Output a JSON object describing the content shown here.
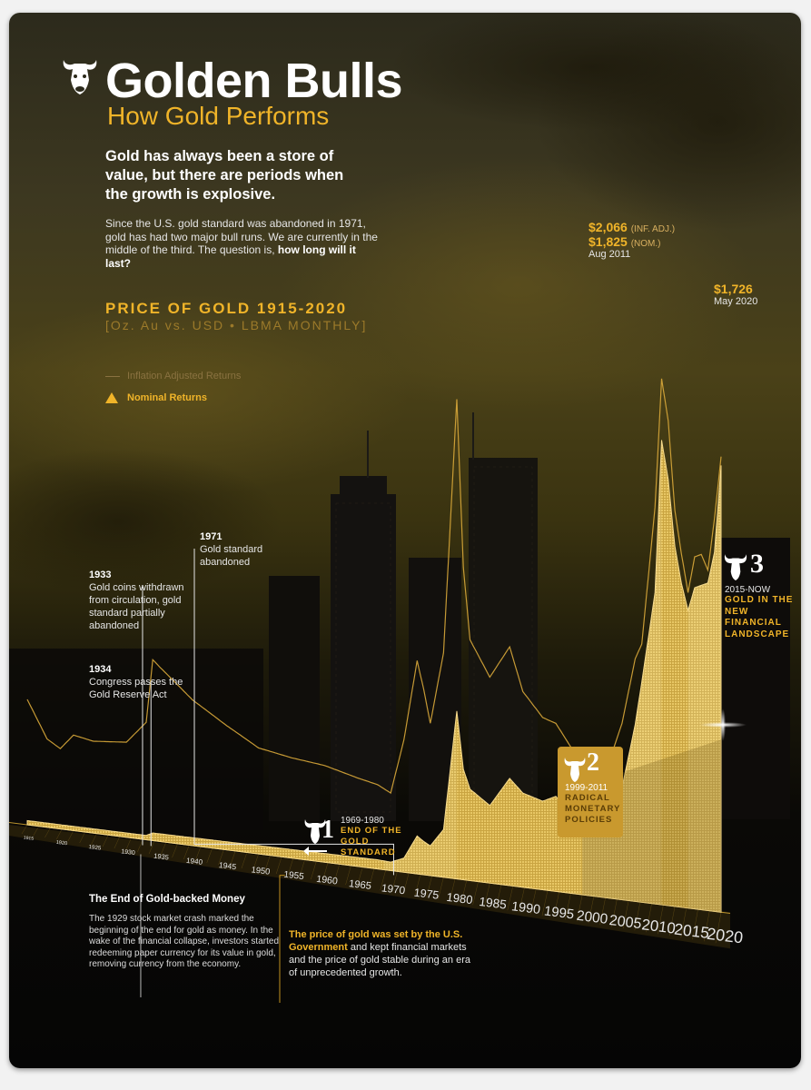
{
  "header": {
    "title": "Golden Bulls",
    "subtitle": "How Gold Performs",
    "lead": "Gold has always been a store of value, but there are periods when the growth is explosive.",
    "body_start": "Since the U.S. gold standard was abandoned in 1971, gold has had two major bull runs. We are currently in the middle of the third. The question is, ",
    "body_bold": "how long will it last?"
  },
  "chart_data": {
    "type": "area",
    "title": "PRICE OF GOLD 1915-2020",
    "subtitle": "[Oz. Au vs. USD • LBMA MONTHLY]",
    "legend": [
      {
        "name": "Inflation Adjusted Returns"
      },
      {
        "name": "Nominal Returns"
      }
    ],
    "x_ticks": [
      "1915",
      "1920",
      "1925",
      "1930",
      "1935",
      "1940",
      "1945",
      "1950",
      "1955",
      "1960",
      "1965",
      "1970",
      "1975",
      "1980",
      "1985",
      "1990",
      "1995",
      "2000",
      "2005",
      "2010",
      "2015",
      "2020"
    ],
    "xlim": [
      1915,
      2020
    ],
    "ylim": [
      0,
      2100
    ],
    "series": [
      {
        "name": "Inflation Adjusted Returns",
        "x": [
          1915,
          1918,
          1920,
          1922,
          1925,
          1930,
          1933,
          1934,
          1935,
          1940,
          1945,
          1950,
          1955,
          1960,
          1965,
          1968,
          1970,
          1972,
          1974,
          1975,
          1976,
          1978,
          1980,
          1981,
          1982,
          1985,
          1988,
          1990,
          1993,
          1995,
          1998,
          2000,
          2001,
          2003,
          2005,
          2007,
          2008,
          2010,
          2011,
          2012,
          2013,
          2014,
          2015,
          2016,
          2017,
          2018,
          2019,
          2020
        ],
        "y": [
          600,
          420,
          380,
          450,
          430,
          440,
          540,
          830,
          800,
          660,
          560,
          470,
          440,
          420,
          380,
          360,
          330,
          560,
          900,
          780,
          640,
          940,
          2000,
          1300,
          1000,
          850,
          980,
          800,
          700,
          680,
          560,
          450,
          420,
          540,
          700,
          960,
          1020,
          1560,
          2066,
          1900,
          1550,
          1380,
          1230,
          1370,
          1380,
          1320,
          1520,
          1760
        ]
      },
      {
        "name": "Nominal Returns",
        "x": [
          1915,
          1933,
          1934,
          1968,
          1970,
          1972,
          1974,
          1975,
          1976,
          1978,
          1980,
          1981,
          1982,
          1985,
          1988,
          1990,
          1993,
          1995,
          1998,
          2000,
          2001,
          2003,
          2005,
          2007,
          2008,
          2010,
          2011,
          2012,
          2013,
          2014,
          2015,
          2016,
          2017,
          2018,
          2019,
          2020
        ],
        "y": [
          20,
          20,
          35,
          39,
          36,
          60,
          160,
          140,
          125,
          200,
          700,
          460,
          380,
          320,
          440,
          385,
          360,
          385,
          295,
          280,
          270,
          365,
          445,
          700,
          870,
          1225,
          1825,
          1670,
          1410,
          1265,
          1160,
          1250,
          1260,
          1270,
          1390,
          1726
        ]
      }
    ],
    "peak_2011": {
      "inf_adj": "$2,066",
      "inf_adj_note": "(INF. ADJ.)",
      "nom": "$1,825",
      "nom_note": "(NOM.)",
      "date": "Aug 2011"
    },
    "peak_2020": {
      "value": "$1,726",
      "date": "May 2020"
    }
  },
  "annotations": {
    "a1933": {
      "year": "1933",
      "text": "Gold coins withdrawn from circulation, gold standard partially abandoned"
    },
    "a1934": {
      "year": "1934",
      "text": "Congress passes the Gold Reserve Act"
    },
    "a1971": {
      "year": "1971",
      "text": "Gold standard abandoned"
    }
  },
  "bull_runs": [
    {
      "number": "1",
      "dates": "1969-1980",
      "label": "END OF THE GOLD STANDARD"
    },
    {
      "number": "2",
      "dates": "1999-2011",
      "label": "RADICAL MONETARY POLICIES"
    },
    {
      "number": "3",
      "dates": "2015-NOW",
      "label": "GOLD IN THE NEW FINANCIAL LANDSCAPE"
    }
  ],
  "notes": {
    "left_title": "The End of Gold-backed Money",
    "left_text": "The 1929 stock market crash marked the beginning of the end for gold as money. In the wake of the financial collapse, investors started redeeming paper currency for its value in gold, removing currency from the economy.",
    "right_highlight": "The price of gold was set by the U.S. Government",
    "right_text": " and kept financial markets and the price of gold stable during an era of unprecedented growth."
  },
  "colors": {
    "gold": "#f0b429",
    "gold_fill": "#e8c765",
    "dark": "#0a0906"
  }
}
